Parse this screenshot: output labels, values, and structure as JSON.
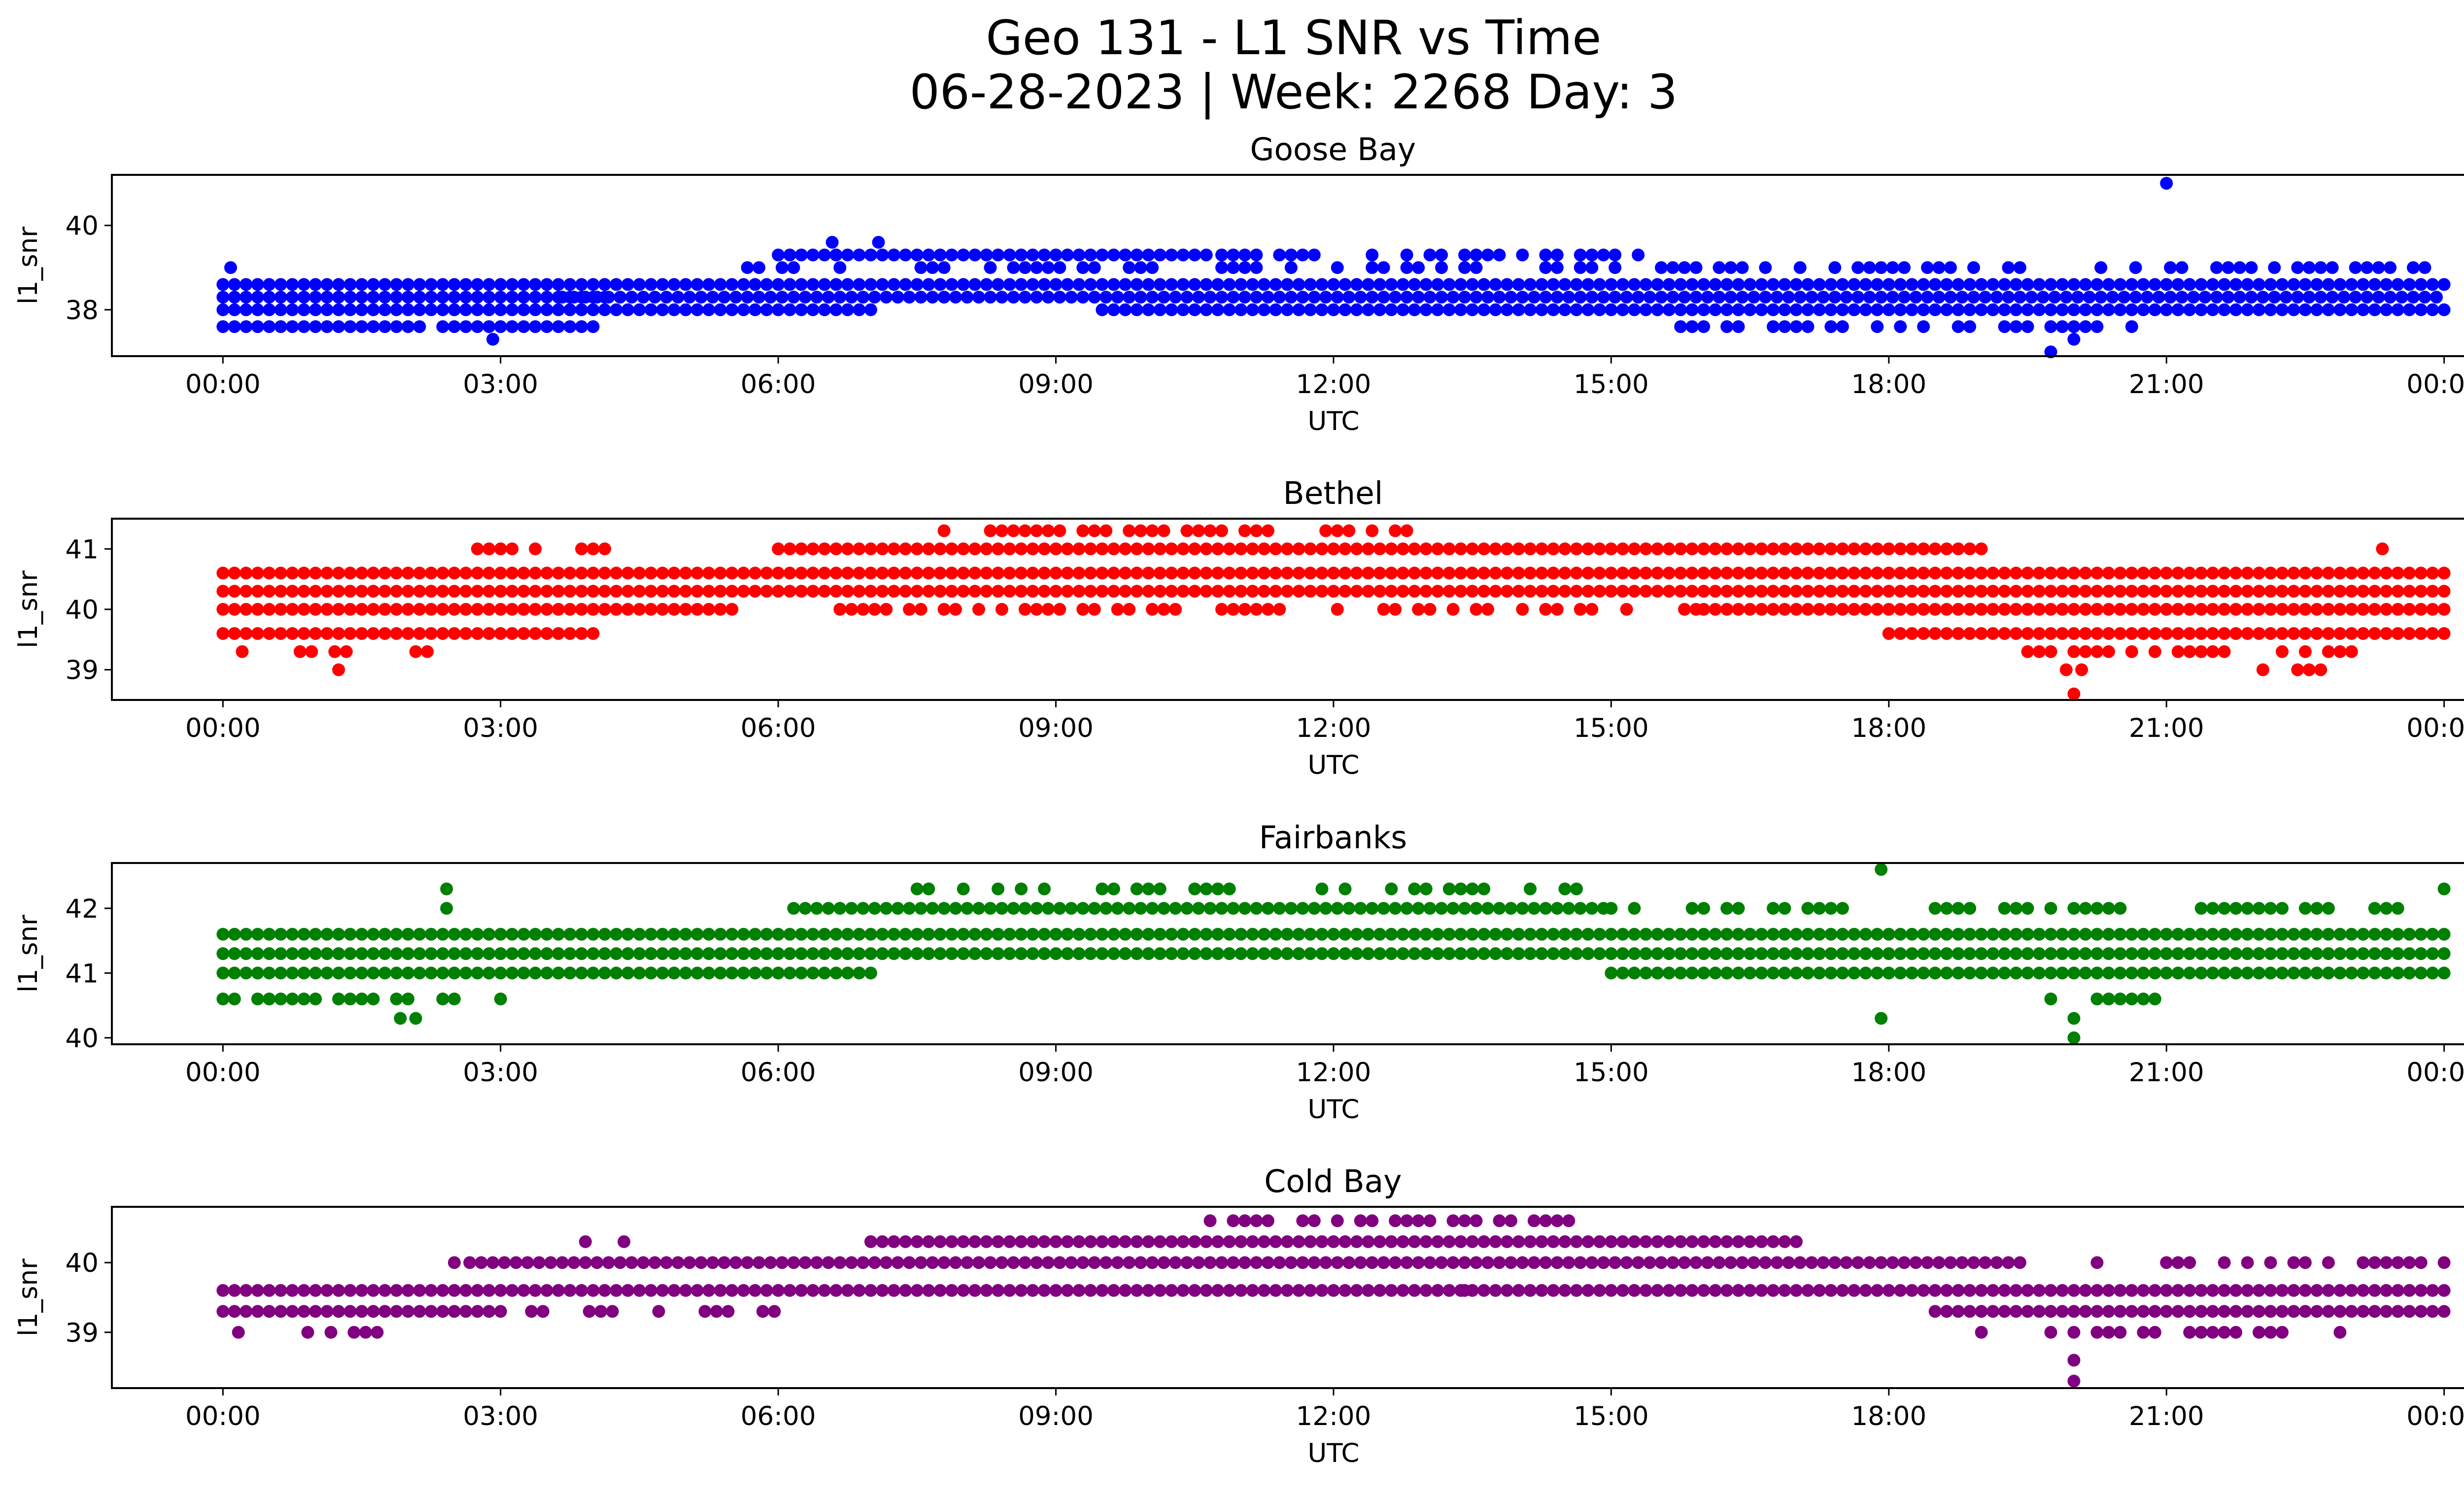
{
  "figure": {
    "title_line1": "Geo 131 - L1 SNR vs Time",
    "title_line2": "06-28-2023 | Week: 2268 Day: 3"
  },
  "chart_data": [
    {
      "type": "scatter",
      "title": "Goose Bay",
      "xlabel": "UTC",
      "ylabel": "l1_snr",
      "color": "#0000ff",
      "xlim_hours": [
        -1.2,
        25.2
      ],
      "ylim": [
        36.9,
        41.2
      ],
      "xticks": [
        "00:00",
        "03:00",
        "06:00",
        "09:00",
        "12:00",
        "15:00",
        "18:00",
        "21:00",
        "00:00"
      ],
      "yticks": [
        38,
        40
      ],
      "density_bands": [
        {
          "y": 37.6,
          "from": "00:00",
          "to": "04:00",
          "gaps": [
            [
              "02:10",
              "02:20"
            ]
          ]
        },
        {
          "y": 38.0,
          "from": "00:00",
          "to": "07:00"
        },
        {
          "y": 38.3,
          "from": "00:00",
          "to": "04:10"
        },
        {
          "y": 37.6,
          "from": "15:30",
          "to": "21:00",
          "sparse": true
        },
        {
          "y": 38.0,
          "from": "09:30",
          "to": "24:00"
        },
        {
          "y": 38.3,
          "from": "03:40",
          "to": "24:00"
        },
        {
          "y": 38.6,
          "from": "00:00",
          "to": "24:00"
        },
        {
          "y": 39.0,
          "from": "05:40",
          "to": "24:00",
          "sparse": true
        },
        {
          "y": 39.3,
          "from": "06:00",
          "to": "10:40"
        },
        {
          "y": 39.3,
          "from": "10:40",
          "to": "15:30",
          "sparse": true
        }
      ],
      "points": [
        {
          "x": "00:05",
          "y": 39.0
        },
        {
          "x": "02:55",
          "y": 37.3
        },
        {
          "x": "06:35",
          "y": 39.6
        },
        {
          "x": "07:05",
          "y": 39.6
        },
        {
          "x": "19:45",
          "y": 37.0
        },
        {
          "x": "20:00",
          "y": 37.3
        },
        {
          "x": "21:00",
          "y": 41.0
        }
      ]
    },
    {
      "type": "scatter",
      "title": "Bethel",
      "xlabel": "UTC",
      "ylabel": "l1_snr",
      "color": "#ff0000",
      "xlim_hours": [
        -1.2,
        25.2
      ],
      "ylim": [
        38.5,
        41.5
      ],
      "xticks": [
        "00:00",
        "03:00",
        "06:00",
        "09:00",
        "12:00",
        "15:00",
        "18:00",
        "21:00",
        "00:00"
      ],
      "yticks": [
        39,
        40,
        41
      ],
      "density_bands": [
        {
          "y": 39.3,
          "from": "00:05",
          "to": "02:30",
          "sparse": true
        },
        {
          "y": 39.6,
          "from": "00:00",
          "to": "04:00"
        },
        {
          "y": 40.0,
          "from": "00:00",
          "to": "05:30"
        },
        {
          "y": 40.3,
          "from": "00:00",
          "to": "24:00"
        },
        {
          "y": 40.6,
          "from": "00:00",
          "to": "24:00"
        },
        {
          "y": 41.0,
          "from": "02:45",
          "to": "04:15",
          "sparse": true
        },
        {
          "y": 41.0,
          "from": "06:00",
          "to": "19:00"
        },
        {
          "y": 41.3,
          "from": "07:40",
          "to": "13:00",
          "sparse": true
        },
        {
          "y": 40.0,
          "from": "06:40",
          "to": "16:00",
          "sparse": true
        },
        {
          "y": 40.0,
          "from": "16:00",
          "to": "24:00"
        },
        {
          "y": 39.6,
          "from": "18:00",
          "to": "24:00"
        },
        {
          "y": 39.3,
          "from": "19:30",
          "to": "23:00",
          "sparse": true
        },
        {
          "y": 39.0,
          "from": "21:40",
          "to": "22:40",
          "sparse": true
        }
      ],
      "points": [
        {
          "x": "01:15",
          "y": 39.0
        },
        {
          "x": "19:55",
          "y": 39.0
        },
        {
          "x": "20:05",
          "y": 39.0
        },
        {
          "x": "20:00",
          "y": 38.6
        },
        {
          "x": "23:20",
          "y": 41.0
        }
      ]
    },
    {
      "type": "scatter",
      "title": "Fairbanks",
      "xlabel": "UTC",
      "ylabel": "l1_snr",
      "color": "#008000",
      "xlim_hours": [
        -1.2,
        25.2
      ],
      "ylim": [
        39.9,
        42.7
      ],
      "xticks": [
        "00:00",
        "03:00",
        "06:00",
        "09:00",
        "12:00",
        "15:00",
        "18:00",
        "21:00",
        "00:00"
      ],
      "yticks": [
        40,
        41,
        42
      ],
      "density_bands": [
        {
          "y": 40.6,
          "from": "00:00",
          "to": "03:00",
          "sparse": true
        },
        {
          "y": 41.0,
          "from": "00:00",
          "to": "07:00"
        },
        {
          "y": 41.3,
          "from": "00:00",
          "to": "24:00"
        },
        {
          "y": 41.6,
          "from": "00:00",
          "to": "24:00"
        },
        {
          "y": 42.0,
          "from": "06:10",
          "to": "15:00"
        },
        {
          "y": 42.0,
          "from": "15:00",
          "to": "23:30",
          "sparse": true
        },
        {
          "y": 42.3,
          "from": "07:30",
          "to": "14:40",
          "sparse": true
        },
        {
          "y": 41.0,
          "from": "15:00",
          "to": "24:00"
        },
        {
          "y": 40.6,
          "from": "19:30",
          "to": "21:00",
          "sparse": true
        }
      ],
      "points": [
        {
          "x": "01:55",
          "y": 40.3
        },
        {
          "x": "02:05",
          "y": 40.3
        },
        {
          "x": "02:25",
          "y": 42.0
        },
        {
          "x": "02:25",
          "y": 42.3
        },
        {
          "x": "17:55",
          "y": 42.6
        },
        {
          "x": "17:55",
          "y": 40.3
        },
        {
          "x": "20:00",
          "y": 40.3
        },
        {
          "x": "20:00",
          "y": 40.0
        },
        {
          "x": "24:00",
          "y": 42.3
        }
      ]
    },
    {
      "type": "scatter",
      "title": "Cold Bay",
      "xlabel": "UTC",
      "ylabel": "l1_snr",
      "color": "#800080",
      "xlim_hours": [
        -1.2,
        25.2
      ],
      "ylim": [
        38.2,
        40.8
      ],
      "xticks": [
        "00:00",
        "03:00",
        "06:00",
        "09:00",
        "12:00",
        "15:00",
        "18:00",
        "21:00",
        "00:00"
      ],
      "yticks": [
        39,
        40
      ],
      "density_bands": [
        {
          "y": 39.0,
          "from": "00:10",
          "to": "02:00",
          "sparse": true
        },
        {
          "y": 39.3,
          "from": "00:00",
          "to": "03:00"
        },
        {
          "y": 39.6,
          "from": "00:00",
          "to": "24:00"
        },
        {
          "y": 39.3,
          "from": "03:20",
          "to": "06:00",
          "sparse": true
        },
        {
          "y": 40.0,
          "from": "02:40",
          "to": "19:30"
        },
        {
          "y": 40.3,
          "from": "07:00",
          "to": "17:00"
        },
        {
          "y": 40.6,
          "from": "10:40",
          "to": "14:40",
          "sparse": true
        },
        {
          "y": 39.3,
          "from": "18:30",
          "to": "24:00"
        },
        {
          "y": 39.0,
          "from": "19:00",
          "to": "23:00",
          "sparse": true
        },
        {
          "y": 40.0,
          "from": "21:00",
          "to": "24:00",
          "sparse": true
        }
      ],
      "points": [
        {
          "x": "02:30",
          "y": 40.0
        },
        {
          "x": "03:55",
          "y": 40.3
        },
        {
          "x": "04:20",
          "y": 40.3
        },
        {
          "x": "13:25",
          "y": 39.6
        },
        {
          "x": "20:00",
          "y": 38.6
        },
        {
          "x": "20:00",
          "y": 38.3
        },
        {
          "x": "20:15",
          "y": 40.0
        }
      ]
    }
  ]
}
